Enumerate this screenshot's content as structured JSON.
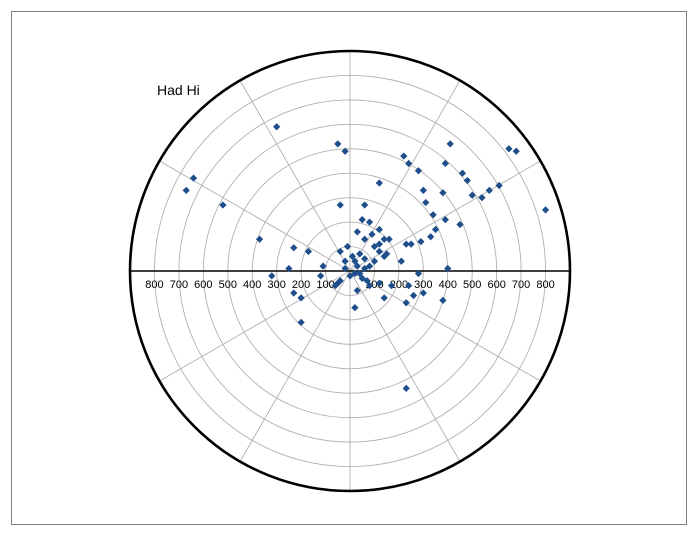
{
  "chart_data": {
    "type": "scatter",
    "projection": "polar",
    "title": "Had Hi",
    "radial_axis": {
      "ticks_left": [
        "800",
        "700",
        "600",
        "500",
        "400",
        "300",
        "200",
        "100"
      ],
      "ticks_right": [
        "100",
        "200",
        "300",
        "400",
        "500",
        "600",
        "700",
        "800"
      ],
      "range": [
        0,
        900
      ],
      "ring_step": 100
    },
    "angular_axis": {
      "spoke_step_deg": 30
    },
    "grid": true,
    "marker_color": "#1f4e8c",
    "points": [
      [
        -670,
        330
      ],
      [
        -640,
        380
      ],
      [
        -520,
        270
      ],
      [
        -300,
        590
      ],
      [
        -370,
        130
      ],
      [
        -320,
        -20
      ],
      [
        -230,
        95
      ],
      [
        -170,
        80
      ],
      [
        -250,
        10
      ],
      [
        -230,
        -90
      ],
      [
        -200,
        -110
      ],
      [
        -200,
        -210
      ],
      [
        -120,
        -20
      ],
      [
        -110,
        20
      ],
      [
        -40,
        -40
      ],
      [
        -60,
        -60
      ],
      [
        -20,
        40
      ],
      [
        -10,
        100
      ],
      [
        -40,
        80
      ],
      [
        10,
        60
      ],
      [
        20,
        40
      ],
      [
        30,
        20
      ],
      [
        40,
        -10
      ],
      [
        50,
        -30
      ],
      [
        60,
        10
      ],
      [
        70,
        -40
      ],
      [
        80,
        20
      ],
      [
        100,
        40
      ],
      [
        20,
        -10
      ],
      [
        60,
        50
      ],
      [
        80,
        -60
      ],
      [
        30,
        -80
      ],
      [
        -20,
        10
      ],
      [
        0,
        -20
      ],
      [
        40,
        70
      ],
      [
        120,
        80
      ],
      [
        140,
        60
      ],
      [
        90,
        150
      ],
      [
        100,
        100
      ],
      [
        120,
        110
      ],
      [
        60,
        130
      ],
      [
        30,
        160
      ],
      [
        80,
        200
      ],
      [
        140,
        130
      ],
      [
        50,
        210
      ],
      [
        120,
        170
      ],
      [
        160,
        130
      ],
      [
        150,
        70
      ],
      [
        60,
        270
      ],
      [
        -20,
        490
      ],
      [
        -50,
        520
      ],
      [
        -40,
        270
      ],
      [
        120,
        360
      ],
      [
        220,
        470
      ],
      [
        240,
        440
      ],
      [
        280,
        410
      ],
      [
        300,
        330
      ],
      [
        310,
        280
      ],
      [
        380,
        320
      ],
      [
        390,
        440
      ],
      [
        410,
        520
      ],
      [
        460,
        400
      ],
      [
        480,
        370
      ],
      [
        500,
        310
      ],
      [
        540,
        300
      ],
      [
        570,
        330
      ],
      [
        610,
        350
      ],
      [
        650,
        500
      ],
      [
        680,
        490
      ],
      [
        800,
        250
      ],
      [
        450,
        190
      ],
      [
        390,
        210
      ],
      [
        340,
        230
      ],
      [
        350,
        170
      ],
      [
        330,
        140
      ],
      [
        290,
        120
      ],
      [
        230,
        110
      ],
      [
        210,
        40
      ],
      [
        250,
        110
      ],
      [
        240,
        -60
      ],
      [
        260,
        -100
      ],
      [
        230,
        -130
      ],
      [
        280,
        -10
      ],
      [
        300,
        -90
      ],
      [
        380,
        -120
      ],
      [
        400,
        10
      ],
      [
        170,
        -60
      ],
      [
        120,
        -50
      ],
      [
        20,
        -150
      ],
      [
        230,
        -480
      ],
      [
        140,
        -110
      ],
      [
        -50,
        -50
      ]
    ]
  }
}
